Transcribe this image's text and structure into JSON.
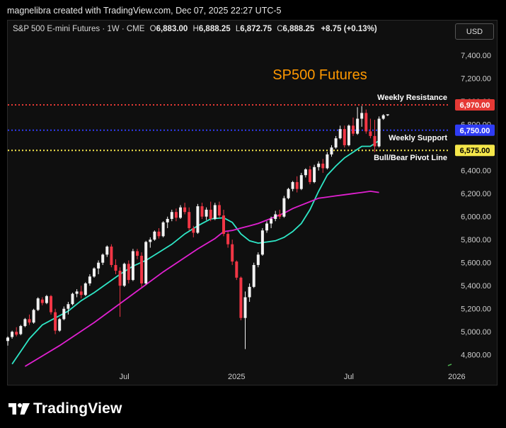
{
  "header": {
    "attribution": "magnelibra created with TradingView.com, Dec 07, 2025 22:27 UTC-5"
  },
  "symbol": {
    "name": "S&P 500 E-mini Futures · 1W · CME",
    "o_label": "O",
    "o_value": "6,883.00",
    "h_label": "H",
    "h_value": "6,888.25",
    "l_label": "L",
    "l_value": "6,872.75",
    "c_label": "C",
    "c_value": "6,888.25",
    "change": "+8.75 (+0.13%)"
  },
  "currency_button": "USD",
  "brand": {
    "name": "TradingView",
    "logo_icon": "tradingview-logo-icon"
  },
  "chart_data": {
    "type": "candlestick",
    "title": "SP500 Futures",
    "title_color": "#ff9800",
    "y_axis": {
      "min": 4700,
      "max": 7530,
      "ticks": [
        "4,800.00",
        "5,000.00",
        "5,200.00",
        "5,400.00",
        "5,600.00",
        "5,800.00",
        "6,000.00",
        "6,200.00",
        "6,400.00",
        "6,600.00",
        "6,800.00",
        "7,000.00",
        "7,200.00",
        "7,400.00"
      ],
      "tick_values": [
        4800,
        5000,
        5200,
        5400,
        5600,
        5800,
        6000,
        6200,
        6400,
        6600,
        6800,
        7000,
        7200,
        7400
      ]
    },
    "x_axis": {
      "labels": [
        "Jul",
        "2025",
        "Jul",
        "2026"
      ],
      "label_weeks": [
        27,
        53,
        79,
        104
      ]
    },
    "grid": false,
    "levels": [
      {
        "name": "Weekly Resistance",
        "value": 6970,
        "label": "6,970.00",
        "color": "#e53935",
        "text_color": "#ffffff"
      },
      {
        "name": "Weekly Support",
        "value": 6750,
        "label": "6,750.00",
        "color": "#2f3cf5",
        "text_color": "#ffffff"
      },
      {
        "name": "Bull/Bear Pivot Line",
        "value": 6575,
        "label": "6,575.00",
        "color": "#f5e74a",
        "text_color": "#000000"
      }
    ],
    "up_color": "#f2f2f2",
    "down_color": "#f23645",
    "ohlc": [
      [
        4920,
        4960,
        4880,
        4950
      ],
      [
        4955,
        5010,
        4940,
        5000
      ],
      [
        5000,
        5040,
        4960,
        4975
      ],
      [
        4980,
        5060,
        4970,
        5050
      ],
      [
        5050,
        5120,
        5040,
        5110
      ],
      [
        5110,
        5150,
        5060,
        5080
      ],
      [
        5080,
        5200,
        5070,
        5190
      ],
      [
        5190,
        5300,
        5180,
        5290
      ],
      [
        5280,
        5300,
        5230,
        5250
      ],
      [
        5250,
        5320,
        5240,
        5310
      ],
      [
        5310,
        5320,
        5150,
        5170
      ],
      [
        5170,
        5200,
        4980,
        5010
      ],
      [
        5010,
        5120,
        5000,
        5110
      ],
      [
        5110,
        5220,
        5100,
        5200
      ],
      [
        5200,
        5260,
        5150,
        5240
      ],
      [
        5240,
        5340,
        5230,
        5330
      ],
      [
        5330,
        5370,
        5300,
        5350
      ],
      [
        5350,
        5400,
        5290,
        5320
      ],
      [
        5320,
        5430,
        5310,
        5420
      ],
      [
        5420,
        5500,
        5400,
        5480
      ],
      [
        5480,
        5560,
        5470,
        5550
      ],
      [
        5550,
        5620,
        5500,
        5600
      ],
      [
        5600,
        5680,
        5580,
        5670
      ],
      [
        5670,
        5750,
        5650,
        5740
      ],
      [
        5740,
        5760,
        5560,
        5580
      ],
      [
        5580,
        5630,
        5500,
        5530
      ],
      [
        5530,
        5560,
        5130,
        5400
      ],
      [
        5400,
        5600,
        5390,
        5590
      ],
      [
        5590,
        5620,
        5420,
        5450
      ],
      [
        5450,
        5720,
        5440,
        5700
      ],
      [
        5700,
        5720,
        5630,
        5660
      ],
      [
        5660,
        5690,
        5390,
        5420
      ],
      [
        5420,
        5790,
        5410,
        5780
      ],
      [
        5780,
        5820,
        5730,
        5800
      ],
      [
        5800,
        5880,
        5790,
        5870
      ],
      [
        5870,
        5900,
        5810,
        5830
      ],
      [
        5830,
        5960,
        5820,
        5950
      ],
      [
        5950,
        6000,
        5900,
        5980
      ],
      [
        5980,
        6060,
        5960,
        6040
      ],
      [
        6040,
        6070,
        5960,
        5990
      ],
      [
        5990,
        6100,
        5980,
        6080
      ],
      [
        6080,
        6120,
        6020,
        6040
      ],
      [
        6040,
        6080,
        5880,
        5900
      ],
      [
        5900,
        5920,
        5820,
        5860
      ],
      [
        5860,
        6110,
        5850,
        6090
      ],
      [
        6090,
        6120,
        5980,
        6000
      ],
      [
        6000,
        6080,
        5970,
        6060
      ],
      [
        6060,
        6130,
        5960,
        5980
      ],
      [
        5980,
        6120,
        5970,
        6100
      ],
      [
        6100,
        6130,
        5990,
        6010
      ],
      [
        6010,
        6060,
        5830,
        5850
      ],
      [
        5850,
        5870,
        5730,
        5760
      ],
      [
        5760,
        5800,
        5580,
        5610
      ],
      [
        5610,
        5620,
        5450,
        5470
      ],
      [
        5470,
        5480,
        5100,
        5120
      ],
      [
        5120,
        5350,
        4850,
        5300
      ],
      [
        5300,
        5420,
        5260,
        5390
      ],
      [
        5390,
        5600,
        5380,
        5580
      ],
      [
        5580,
        5690,
        5560,
        5670
      ],
      [
        5670,
        5900,
        5660,
        5880
      ],
      [
        5880,
        5960,
        5860,
        5940
      ],
      [
        5940,
        6000,
        5900,
        5980
      ],
      [
        5980,
        6050,
        5960,
        6020
      ],
      [
        6020,
        6060,
        5980,
        6000
      ],
      [
        6000,
        6180,
        5990,
        6160
      ],
      [
        6160,
        6250,
        6150,
        6240
      ],
      [
        6240,
        6310,
        6220,
        6300
      ],
      [
        6300,
        6350,
        6210,
        6240
      ],
      [
        6240,
        6380,
        6230,
        6360
      ],
      [
        6360,
        6420,
        6340,
        6410
      ],
      [
        6410,
        6440,
        6280,
        6300
      ],
      [
        6300,
        6450,
        6290,
        6430
      ],
      [
        6430,
        6480,
        6400,
        6460
      ],
      [
        6460,
        6500,
        6380,
        6420
      ],
      [
        6420,
        6560,
        6410,
        6540
      ],
      [
        6540,
        6620,
        6520,
        6600
      ],
      [
        6600,
        6700,
        6590,
        6680
      ],
      [
        6680,
        6790,
        6670,
        6760
      ],
      [
        6760,
        6790,
        6600,
        6620
      ],
      [
        6620,
        6800,
        6610,
        6790
      ],
      [
        6790,
        6860,
        6700,
        6720
      ],
      [
        6720,
        6950,
        6710,
        6850
      ],
      [
        6850,
        6960,
        6780,
        6900
      ],
      [
        6900,
        6930,
        6720,
        6740
      ],
      [
        6740,
        6850,
        6680,
        6700
      ],
      [
        6700,
        6840,
        6560,
        6610
      ],
      [
        6610,
        6870,
        6600,
        6850
      ],
      [
        6850,
        6890,
        6840,
        6880
      ],
      [
        6880,
        6888.25,
        6872.75,
        6888.25
      ]
    ],
    "ma_fast": {
      "color": "#2ee6c6",
      "points": [
        [
          1,
          4720
        ],
        [
          3,
          4830
        ],
        [
          5,
          4940
        ],
        [
          8,
          5060
        ],
        [
          11,
          5120
        ],
        [
          14,
          5180
        ],
        [
          17,
          5270
        ],
        [
          20,
          5340
        ],
        [
          23,
          5420
        ],
        [
          26,
          5500
        ],
        [
          29,
          5570
        ],
        [
          32,
          5620
        ],
        [
          35,
          5690
        ],
        [
          38,
          5760
        ],
        [
          41,
          5850
        ],
        [
          44,
          5920
        ],
        [
          47,
          5980
        ],
        [
          50,
          5990
        ],
        [
          52,
          5950
        ],
        [
          54,
          5850
        ],
        [
          56,
          5790
        ],
        [
          58,
          5770
        ],
        [
          60,
          5780
        ],
        [
          62,
          5790
        ],
        [
          64,
          5820
        ],
        [
          66,
          5870
        ],
        [
          68,
          5940
        ],
        [
          70,
          6060
        ],
        [
          72,
          6220
        ],
        [
          74,
          6360
        ],
        [
          76,
          6440
        ],
        [
          78,
          6510
        ],
        [
          80,
          6560
        ],
        [
          82,
          6610
        ],
        [
          84,
          6610
        ],
        [
          86,
          6660
        ]
      ]
    },
    "ma_slow": {
      "color": "#e020d0",
      "points": [
        [
          4,
          4700
        ],
        [
          8,
          4790
        ],
        [
          12,
          4880
        ],
        [
          16,
          4980
        ],
        [
          20,
          5080
        ],
        [
          24,
          5190
        ],
        [
          28,
          5300
        ],
        [
          32,
          5410
        ],
        [
          36,
          5520
        ],
        [
          40,
          5620
        ],
        [
          44,
          5720
        ],
        [
          48,
          5810
        ],
        [
          50,
          5870
        ],
        [
          52,
          5880
        ],
        [
          54,
          5900
        ],
        [
          56,
          5920
        ],
        [
          58,
          5940
        ],
        [
          60,
          5970
        ],
        [
          62,
          6000
        ],
        [
          64,
          6030
        ],
        [
          66,
          6070
        ],
        [
          68,
          6100
        ],
        [
          70,
          6130
        ],
        [
          72,
          6160
        ],
        [
          74,
          6170
        ],
        [
          76,
          6180
        ],
        [
          78,
          6190
        ],
        [
          80,
          6200
        ],
        [
          82,
          6210
        ],
        [
          84,
          6220
        ],
        [
          86,
          6210
        ]
      ]
    },
    "marker_color": "#4caf50"
  }
}
